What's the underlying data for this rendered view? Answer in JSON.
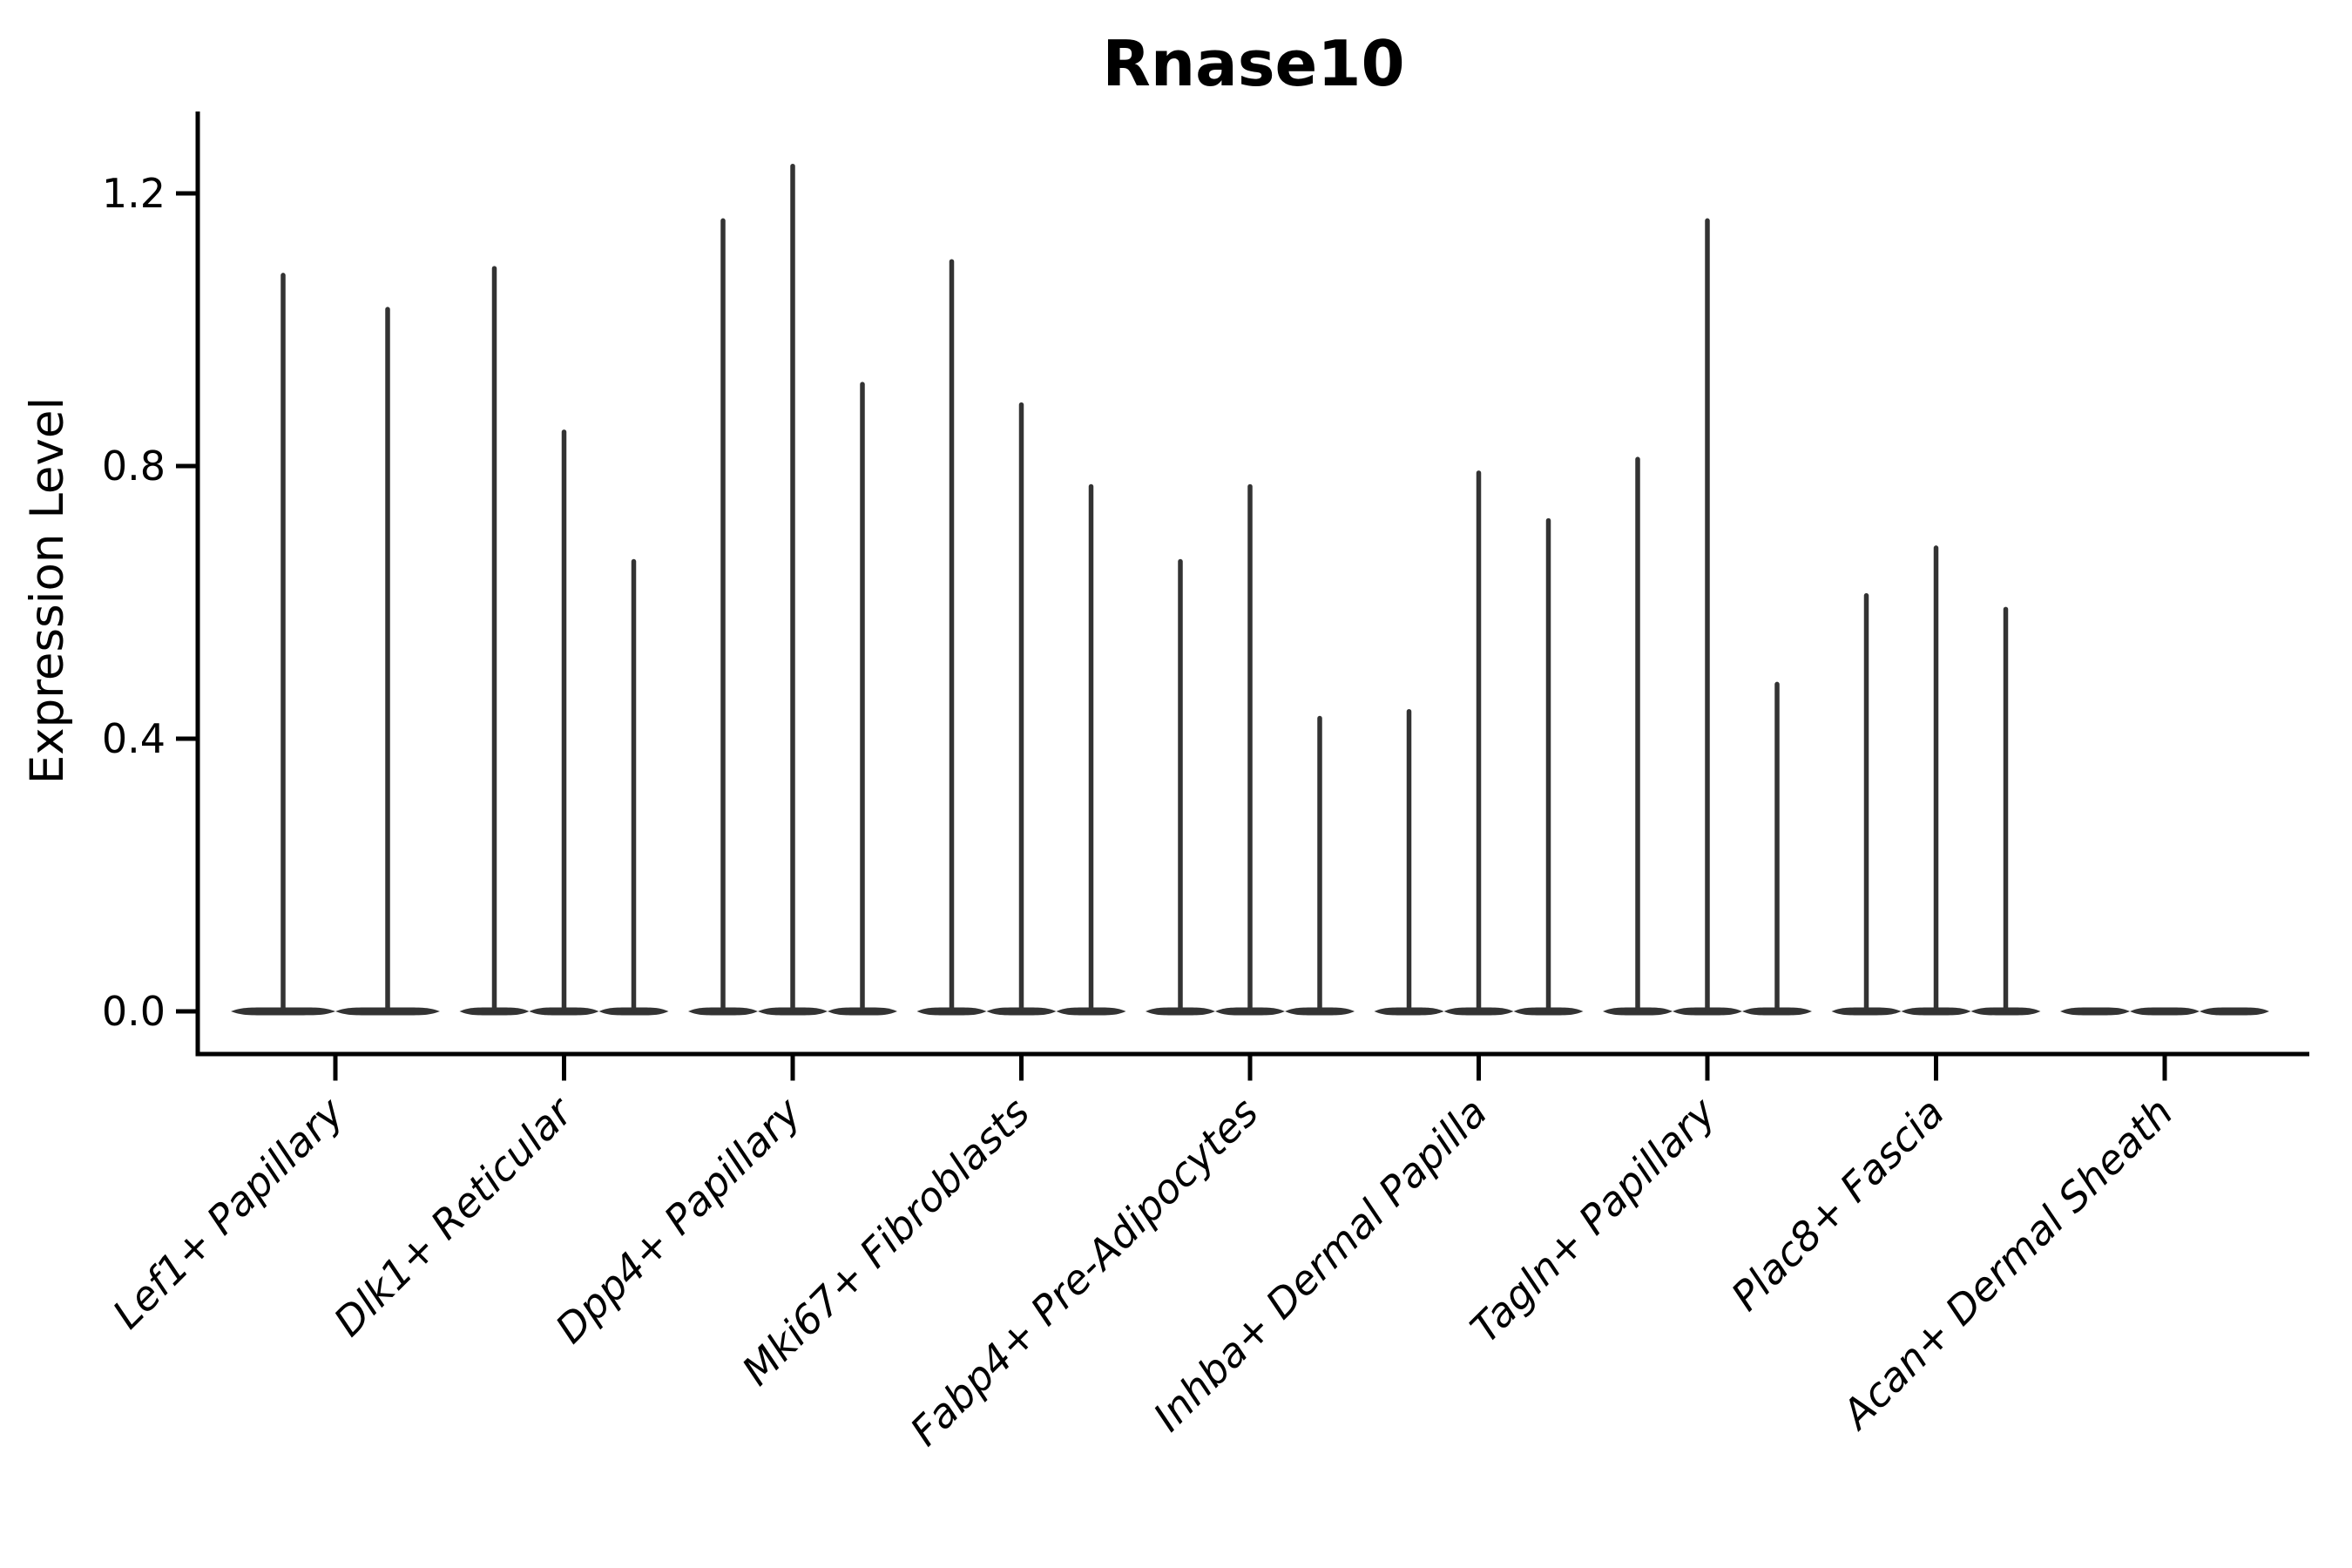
{
  "figure": {
    "title": "Rnase10",
    "ylabel": "Expression Level"
  },
  "chart_data": {
    "type": "violin",
    "title": "Rnase10",
    "xlabel": "",
    "ylabel": "Expression Level",
    "ylim": [
      -0.06,
      1.32
    ],
    "yticks": [
      0.0,
      0.4,
      0.8,
      1.2
    ],
    "ytick_labels": [
      "0.0",
      "0.4",
      "0.8",
      "1.2"
    ],
    "grid": false,
    "legend": false,
    "x_tick_rotation_deg": 45,
    "categories": [
      "Lef1+ Papillary",
      "Dlk1+ Reticular",
      "Dpp4+ Papillary",
      "Mki67+ Fibroblasts",
      "Fabp4+ Pre-Adipocytes",
      "Inhba+ Dermal Papilla",
      "Tagln+ Papillary",
      "Plac8+ Fascia",
      "Acan+ Dermal Sheath"
    ],
    "groups": [
      {
        "category": "Lef1+ Papillary",
        "violin_maxes": [
          1.08,
          1.03
        ]
      },
      {
        "category": "Dlk1+ Reticular",
        "violin_maxes": [
          1.09,
          0.85,
          0.66
        ]
      },
      {
        "category": "Dpp4+ Papillary",
        "violin_maxes": [
          1.16,
          1.24,
          0.92
        ]
      },
      {
        "category": "Mki67+ Fibroblasts",
        "violin_maxes": [
          1.1,
          0.89,
          0.77
        ]
      },
      {
        "category": "Fabp4+ Pre-Adipocytes",
        "violin_maxes": [
          0.66,
          0.77,
          0.43
        ]
      },
      {
        "category": "Inhba+ Dermal Papilla",
        "violin_maxes": [
          0.44,
          0.79,
          0.72
        ]
      },
      {
        "category": "Tagln+ Papillary",
        "violin_maxes": [
          0.81,
          1.16,
          0.48
        ]
      },
      {
        "category": "Plac8+ Fascia",
        "violin_maxes": [
          0.61,
          0.68,
          0.59
        ]
      },
      {
        "category": "Acan+ Dermal Sheath",
        "violin_maxes": [
          0.0,
          0.0,
          0.0
        ]
      }
    ]
  },
  "colors": {
    "violin": "#333333",
    "axis": "#000000",
    "text": "#000000",
    "background": "#ffffff"
  }
}
